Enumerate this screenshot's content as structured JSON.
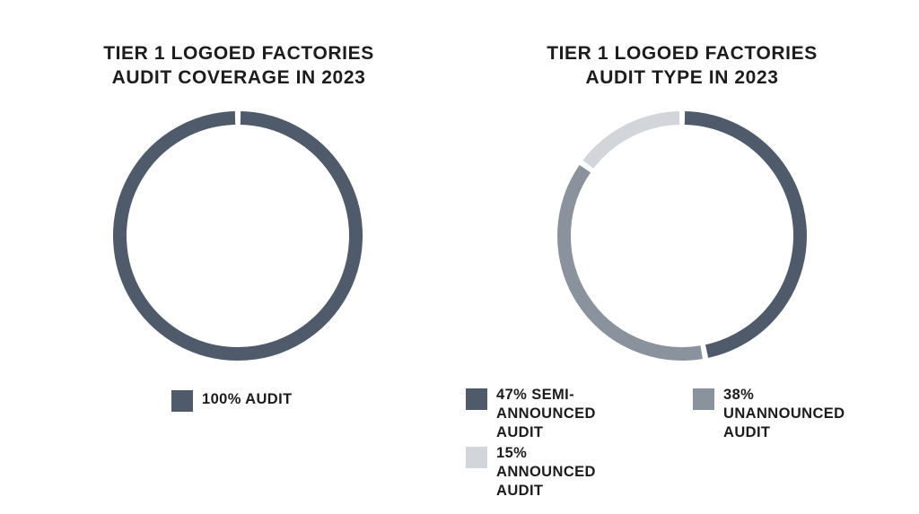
{
  "chart_data": [
    {
      "type": "pie",
      "style": "donut",
      "title": "TIER 1 LOGOED FACTORIES\nAUDIT COVERAGE IN 2023",
      "slices": [
        {
          "label": "100% AUDIT",
          "value": 100,
          "color": "#4f5b6a"
        }
      ]
    },
    {
      "type": "pie",
      "style": "donut",
      "title": "TIER 1 LOGOED FACTORIES\nAUDIT TYPE IN 2023",
      "slices": [
        {
          "label": "47% SEMI-\nANNOUNCED AUDIT",
          "value": 47,
          "color": "#4f5b6a"
        },
        {
          "label": "38% UNANNOUNCED\nAUDIT",
          "value": 38,
          "color": "#8a939d"
        },
        {
          "label": "15% ANNOUNCED\nAUDIT",
          "value": 15,
          "color": "#d2d5da"
        }
      ]
    }
  ]
}
